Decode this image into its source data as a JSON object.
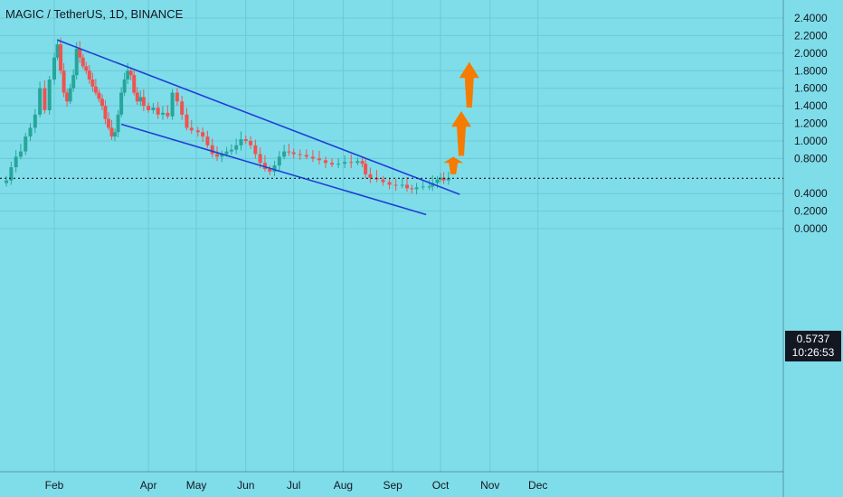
{
  "header": {
    "title": "MAGIC / TetherUS, 1D, BINANCE"
  },
  "last_price": {
    "value": "0.5737",
    "countdown": "10:26:53"
  },
  "colors": {
    "background": "#7fdde9",
    "up_candle": "#26a69a",
    "down_candle": "#ef5350",
    "trendline": "#1f3fd6",
    "arrow": "#f57c00",
    "grid": "#6cc9d6",
    "axis_text": "#131722"
  },
  "chart_data": {
    "type": "candlestick",
    "title": "MAGIC / TetherUS, 1D, BINANCE",
    "xlabel": "",
    "ylabel": "",
    "ylim": [
      -0.25,
      2.55
    ],
    "grid": true,
    "y_ticks": [
      "2.4000",
      "2.2000",
      "2.0000",
      "1.8000",
      "1.6000",
      "1.4000",
      "1.2000",
      "1.0000",
      "0.8000",
      "0.4000",
      "0.2000",
      "0.0000"
    ],
    "x_ticks": [
      {
        "label": "Feb",
        "date": "2023-02-01"
      },
      {
        "label": "Apr",
        "date": "2023-04-01"
      },
      {
        "label": "May",
        "date": "2023-05-01"
      },
      {
        "label": "Jun",
        "date": "2023-06-01"
      },
      {
        "label": "Jul",
        "date": "2023-07-01"
      },
      {
        "label": "Aug",
        "date": "2023-08-01"
      },
      {
        "label": "Sep",
        "date": "2023-09-01"
      },
      {
        "label": "Oct",
        "date": "2023-10-01"
      },
      {
        "label": "Nov",
        "date": "2023-11-01"
      },
      {
        "label": "Dec",
        "date": "2023-12-01"
      }
    ],
    "x_range": [
      "2022-12-29",
      "2023-12-31"
    ],
    "close_series": [
      [
        "2022-12-29",
        0.52
      ],
      [
        "2023-01-02",
        0.55
      ],
      [
        "2023-01-05",
        0.7
      ],
      [
        "2023-01-08",
        0.82
      ],
      [
        "2023-01-11",
        0.88
      ],
      [
        "2023-01-14",
        1.05
      ],
      [
        "2023-01-17",
        1.15
      ],
      [
        "2023-01-20",
        1.3
      ],
      [
        "2023-01-23",
        1.6
      ],
      [
        "2023-01-26",
        1.35
      ],
      [
        "2023-01-29",
        1.7
      ],
      [
        "2023-02-01",
        1.95
      ],
      [
        "2023-02-03",
        2.1
      ],
      [
        "2023-02-05",
        1.8
      ],
      [
        "2023-02-07",
        1.55
      ],
      [
        "2023-02-09",
        1.45
      ],
      [
        "2023-02-11",
        1.6
      ],
      [
        "2023-02-13",
        1.75
      ],
      [
        "2023-02-15",
        2.05
      ],
      [
        "2023-02-17",
        1.95
      ],
      [
        "2023-02-19",
        1.85
      ],
      [
        "2023-02-21",
        1.8
      ],
      [
        "2023-02-23",
        1.7
      ],
      [
        "2023-02-25",
        1.62
      ],
      [
        "2023-02-27",
        1.55
      ],
      [
        "2023-03-01",
        1.48
      ],
      [
        "2023-03-03",
        1.4
      ],
      [
        "2023-03-05",
        1.25
      ],
      [
        "2023-03-07",
        1.15
      ],
      [
        "2023-03-09",
        1.05
      ],
      [
        "2023-03-11",
        1.1
      ],
      [
        "2023-03-13",
        1.3
      ],
      [
        "2023-03-15",
        1.55
      ],
      [
        "2023-03-17",
        1.7
      ],
      [
        "2023-03-19",
        1.8
      ],
      [
        "2023-03-21",
        1.75
      ],
      [
        "2023-03-23",
        1.55
      ],
      [
        "2023-03-25",
        1.45
      ],
      [
        "2023-03-27",
        1.5
      ],
      [
        "2023-03-29",
        1.4
      ],
      [
        "2023-04-01",
        1.35
      ],
      [
        "2023-04-04",
        1.38
      ],
      [
        "2023-04-07",
        1.3
      ],
      [
        "2023-04-10",
        1.32
      ],
      [
        "2023-04-13",
        1.28
      ],
      [
        "2023-04-16",
        1.55
      ],
      [
        "2023-04-19",
        1.45
      ],
      [
        "2023-04-22",
        1.3
      ],
      [
        "2023-04-25",
        1.15
      ],
      [
        "2023-04-28",
        1.12
      ],
      [
        "2023-05-02",
        1.1
      ],
      [
        "2023-05-05",
        1.05
      ],
      [
        "2023-05-08",
        0.95
      ],
      [
        "2023-05-11",
        0.85
      ],
      [
        "2023-05-14",
        0.82
      ],
      [
        "2023-05-17",
        0.85
      ],
      [
        "2023-05-20",
        0.88
      ],
      [
        "2023-05-23",
        0.9
      ],
      [
        "2023-05-26",
        0.95
      ],
      [
        "2023-05-29",
        1.02
      ],
      [
        "2023-06-01",
        1.0
      ],
      [
        "2023-06-04",
        0.95
      ],
      [
        "2023-06-07",
        0.85
      ],
      [
        "2023-06-10",
        0.75
      ],
      [
        "2023-06-13",
        0.68
      ],
      [
        "2023-06-16",
        0.65
      ],
      [
        "2023-06-19",
        0.72
      ],
      [
        "2023-06-22",
        0.82
      ],
      [
        "2023-06-25",
        0.88
      ],
      [
        "2023-06-28",
        0.87
      ],
      [
        "2023-07-01",
        0.85
      ],
      [
        "2023-07-05",
        0.84
      ],
      [
        "2023-07-09",
        0.82
      ],
      [
        "2023-07-13",
        0.8
      ],
      [
        "2023-07-17",
        0.78
      ],
      [
        "2023-07-21",
        0.75
      ],
      [
        "2023-07-25",
        0.73
      ],
      [
        "2023-07-29",
        0.74
      ],
      [
        "2023-08-02",
        0.76
      ],
      [
        "2023-08-06",
        0.75
      ],
      [
        "2023-08-10",
        0.77
      ],
      [
        "2023-08-13",
        0.74
      ],
      [
        "2023-08-15",
        0.62
      ],
      [
        "2023-08-18",
        0.58
      ],
      [
        "2023-08-22",
        0.56
      ],
      [
        "2023-08-26",
        0.53
      ],
      [
        "2023-08-30",
        0.5
      ],
      [
        "2023-09-03",
        0.49
      ],
      [
        "2023-09-07",
        0.5
      ],
      [
        "2023-09-10",
        0.46
      ],
      [
        "2023-09-13",
        0.45
      ],
      [
        "2023-09-16",
        0.47
      ],
      [
        "2023-09-20",
        0.48
      ],
      [
        "2023-09-24",
        0.48
      ],
      [
        "2023-09-26",
        0.52
      ],
      [
        "2023-09-29",
        0.56
      ],
      [
        "2023-10-01",
        0.58
      ],
      [
        "2023-10-03",
        0.55
      ],
      [
        "2023-10-06",
        0.5737
      ]
    ],
    "annotations": {
      "upper_trendline": {
        "from": [
          "2023-02-03",
          2.15
        ],
        "to": [
          "2023-10-13",
          0.39
        ]
      },
      "lower_trendline": {
        "from": [
          "2023-03-15",
          1.19
        ],
        "to": [
          "2023-09-22",
          0.16
        ]
      },
      "last_price_line": 0.5737,
      "arrows": [
        {
          "date": "2023-10-09",
          "from": 0.62,
          "to": 0.82
        },
        {
          "date": "2023-10-14",
          "from": 0.83,
          "to": 1.34
        },
        {
          "date": "2023-10-19",
          "from": 1.38,
          "to": 1.9
        }
      ]
    }
  }
}
